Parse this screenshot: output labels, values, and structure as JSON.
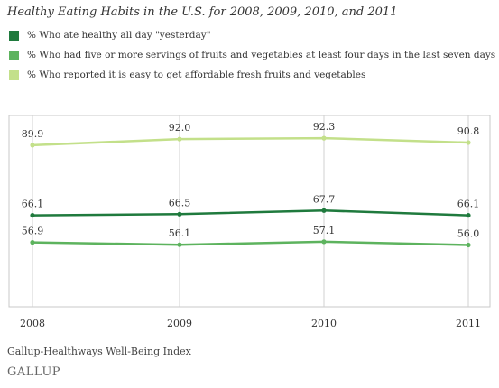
{
  "chart_data": {
    "type": "line",
    "title": "Healthy Eating Habits in the U.S. for 2008, 2009, 2010, and 2011",
    "categories": [
      "2008",
      "2009",
      "2010",
      "2011"
    ],
    "series": [
      {
        "name": "% Who ate healthy all day \"yesterday\"",
        "values": [
          66.1,
          66.5,
          67.7,
          66.1
        ],
        "labels": [
          "66.1",
          "66.5",
          "67.7",
          "66.1"
        ],
        "color": "#1f7a3d"
      },
      {
        "name": "% Who had five or more servings of fruits and vegetables at least four days in the last seven days",
        "values": [
          56.9,
          56.1,
          57.1,
          56.0
        ],
        "labels": [
          "56.9",
          "56.1",
          "57.1",
          "56.0"
        ],
        "color": "#5db35e"
      },
      {
        "name": "% Who reported it is easy to get affordable fresh fruits and vegetables",
        "values": [
          89.9,
          92.0,
          92.3,
          90.8
        ],
        "labels": [
          "89.9",
          "92.0",
          "92.3",
          "90.8"
        ],
        "color": "#c3e08a"
      }
    ],
    "ylim": [
      35,
      100
    ],
    "grid": "vertical",
    "legend": "top-left",
    "xlabel": "",
    "ylabel": ""
  },
  "source": "Gallup-Healthways Well-Being Index",
  "logo": "GALLUP"
}
